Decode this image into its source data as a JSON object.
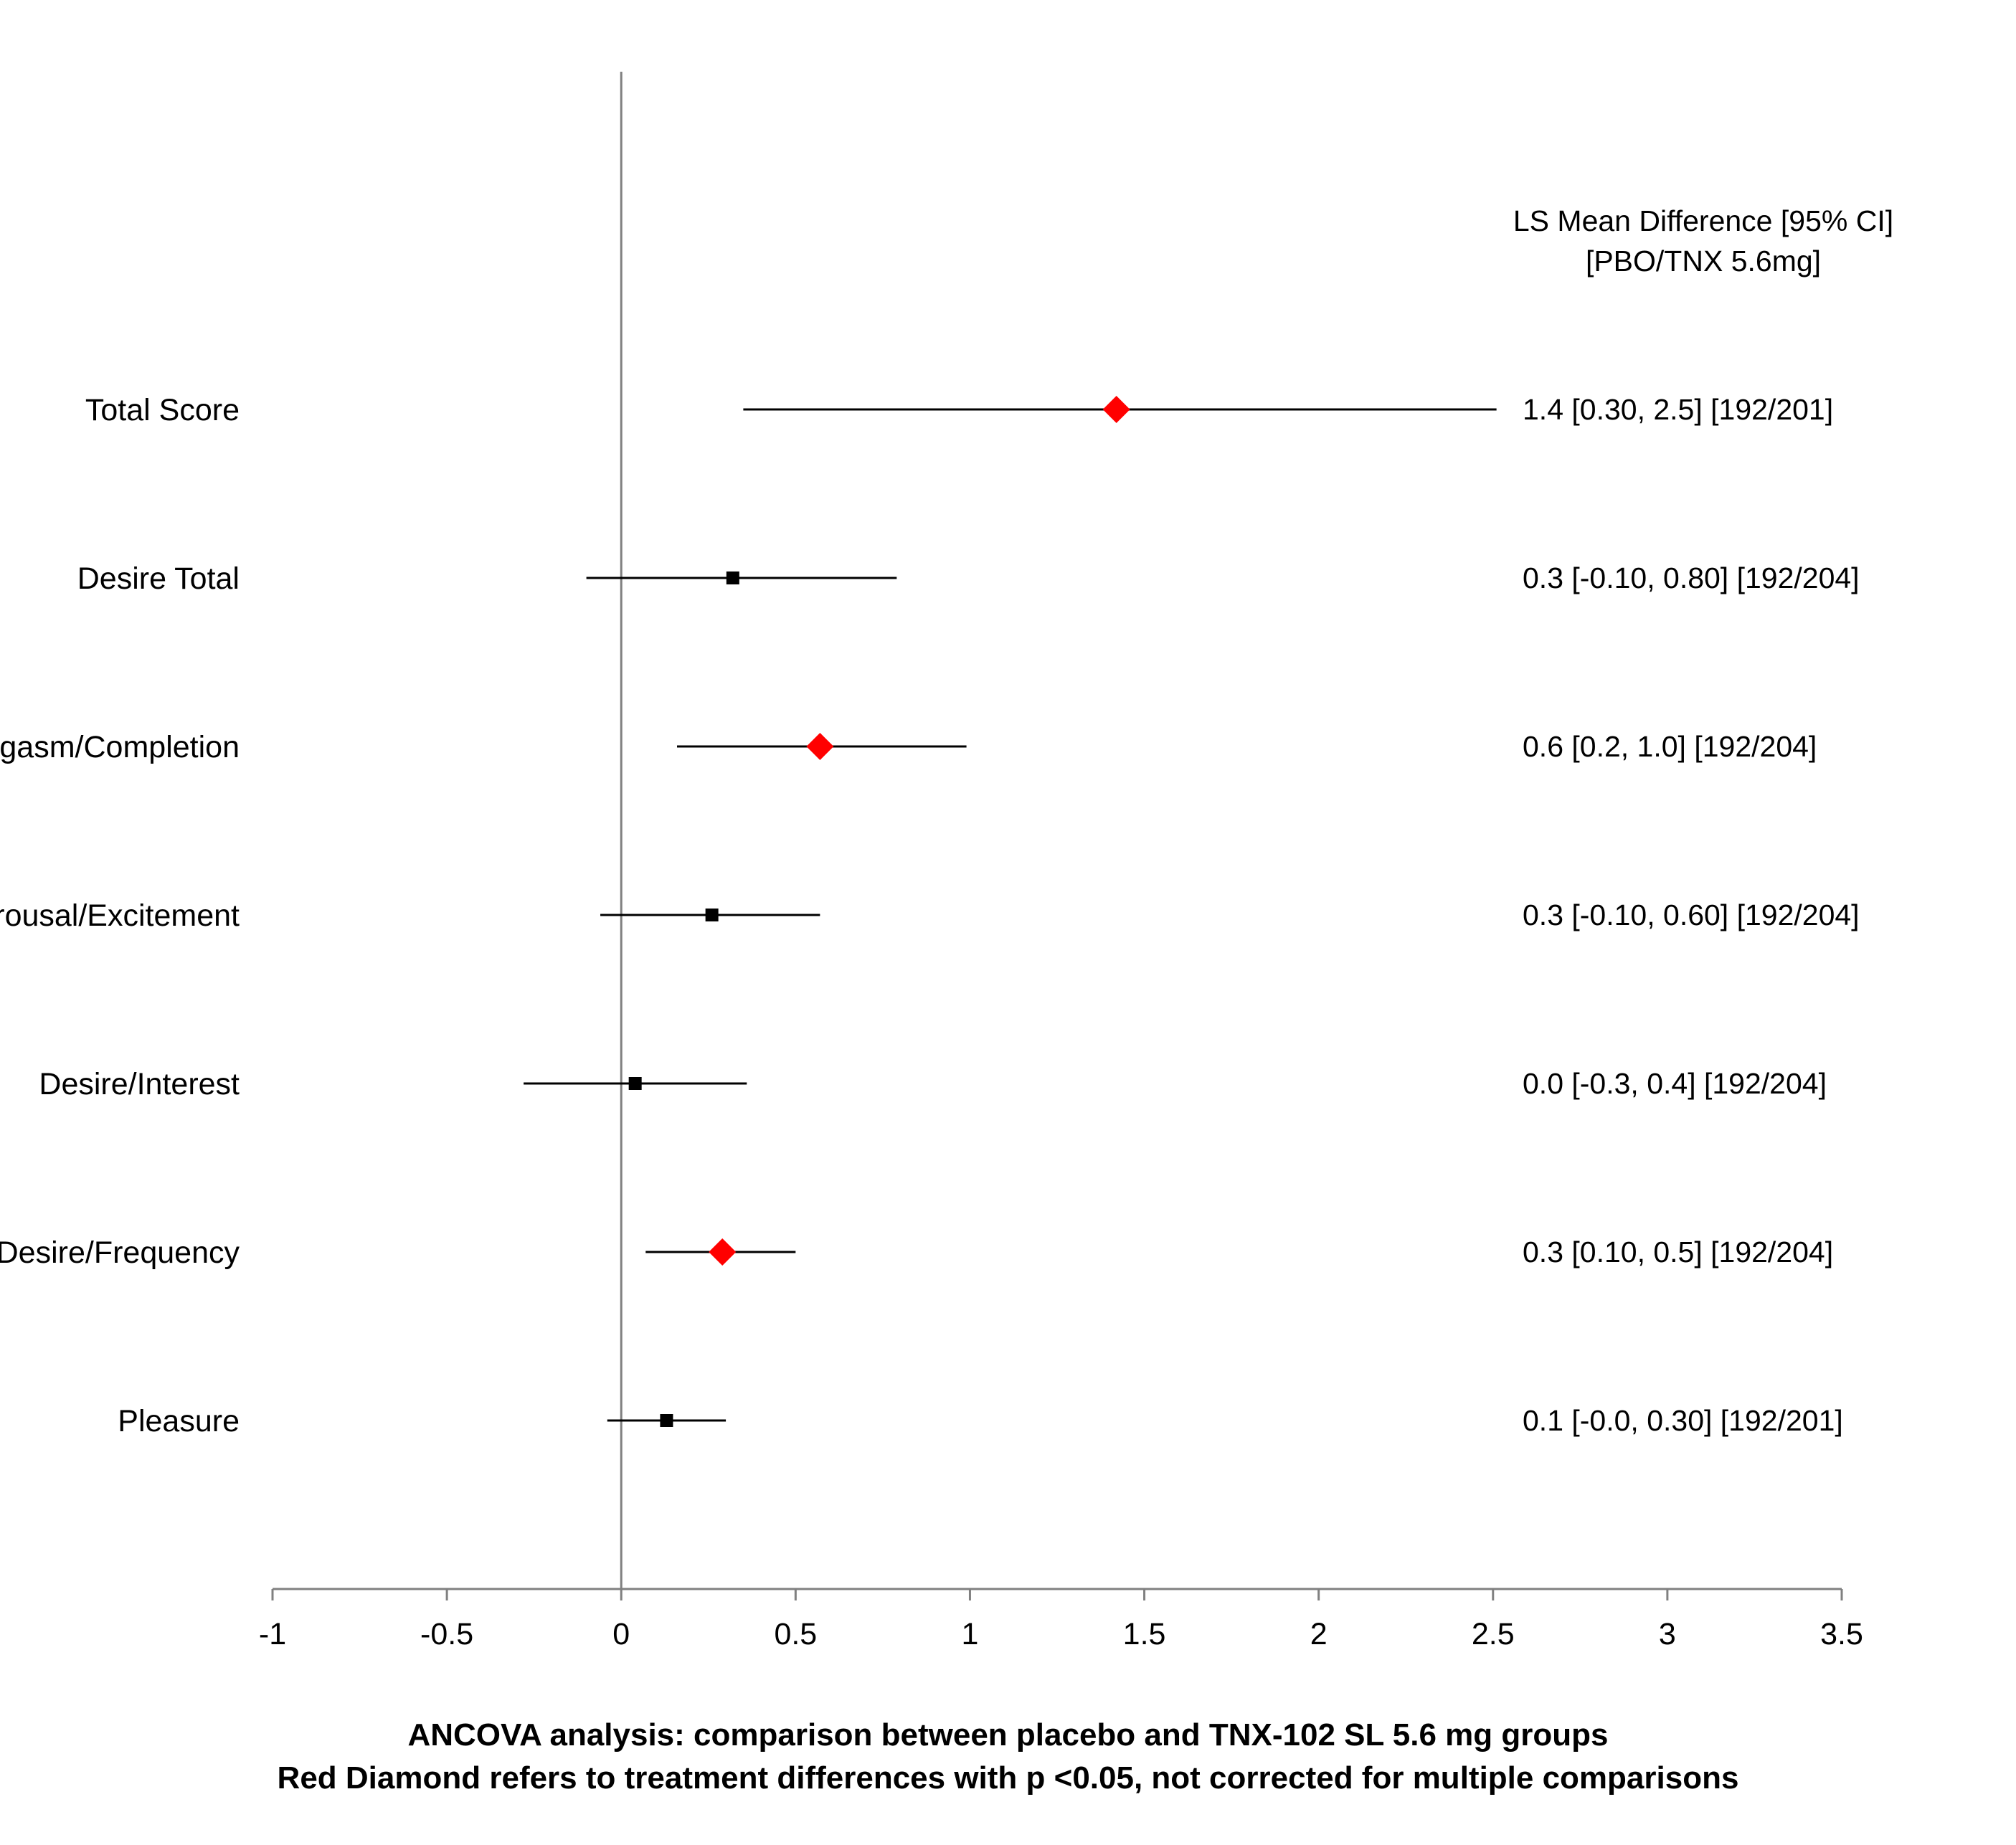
{
  "chart_data": {
    "type": "forest",
    "xlim": [
      -1,
      3.5
    ],
    "x_ticks": [
      "-1",
      "-0.5",
      "0",
      "0.5",
      "1",
      "1.5",
      "2",
      "2.5",
      "3",
      "3.5"
    ],
    "annotation_header": [
      "LS Mean Difference [95% CI]",
      "[PBO/TNX 5.6mg]"
    ],
    "rows": [
      {
        "label": "Total Score",
        "estimate": 1.42,
        "ci_low": 0.35,
        "ci_high": 2.51,
        "significant": true,
        "annotation": "1.4 [0.30, 2.5]   [192/201]"
      },
      {
        "label": "Desire Total",
        "estimate": 0.32,
        "ci_low": -0.1,
        "ci_high": 0.79,
        "significant": false,
        "annotation": "0.3 [-0.10, 0.80]   [192/204]"
      },
      {
        "label": "Orgasm/Completion",
        "estimate": 0.57,
        "ci_low": 0.16,
        "ci_high": 0.99,
        "significant": true,
        "annotation": "0.6 [0.2, 1.0]   [192/204]"
      },
      {
        "label": "Arousal/Excitement",
        "estimate": 0.26,
        "ci_low": -0.06,
        "ci_high": 0.57,
        "significant": false,
        "annotation": "0.3 [-0.10, 0.60]   [192/204]"
      },
      {
        "label": "Desire/Interest",
        "estimate": 0.04,
        "ci_low": -0.28,
        "ci_high": 0.36,
        "significant": false,
        "annotation": "0.0 [-0.3, 0.4]   [192/204]"
      },
      {
        "label": "Desire/Frequency",
        "estimate": 0.29,
        "ci_low": 0.07,
        "ci_high": 0.5,
        "significant": true,
        "annotation": "0.3 [0.10, 0.5]   [192/204]"
      },
      {
        "label": "Pleasure",
        "estimate": 0.13,
        "ci_low": -0.04,
        "ci_high": 0.3,
        "significant": false,
        "annotation": "0.1 [-0.0, 0.30]   [192/201]"
      }
    ],
    "colors": {
      "significant": "#ff0000",
      "non_significant": "#000000",
      "zero_line": "#808080",
      "axis": "#808080"
    },
    "footnotes": [
      "ANCOVA analysis: comparison between placebo and TNX-102 SL 5.6 mg groups",
      "Red Diamond refers to treatment differences with p <0.05, not corrected for multiple comparisons"
    ]
  }
}
